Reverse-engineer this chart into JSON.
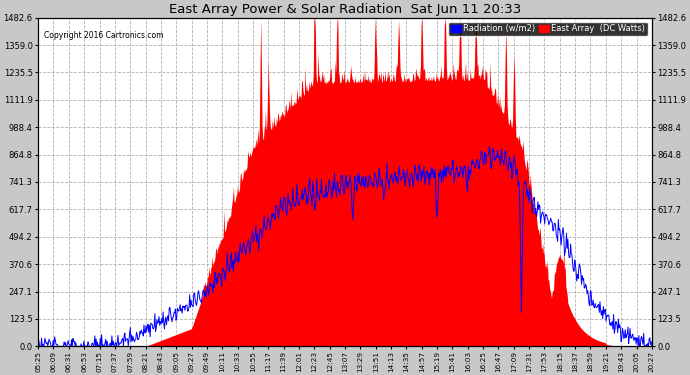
{
  "title": "East Array Power & Solar Radiation  Sat Jun 11 20:33",
  "copyright": "Copyright 2016 Cartronics.com",
  "legend_labels": [
    "Radiation (w/m2)",
    "East Array  (DC Watts)"
  ],
  "legend_colors": [
    "#0000ff",
    "#ff0000"
  ],
  "background_color": "#c8c8c8",
  "plot_bg_color": "#ffffff",
  "red_fill_color": "#ff0000",
  "blue_line_color": "#0000ff",
  "y_ticks": [
    0.0,
    123.5,
    247.1,
    370.6,
    494.2,
    617.7,
    741.3,
    864.8,
    988.4,
    1111.9,
    1235.5,
    1359.0,
    1482.6
  ],
  "x_tick_labels": [
    "05:25",
    "06:09",
    "06:31",
    "06:53",
    "07:15",
    "07:37",
    "07:59",
    "08:21",
    "08:43",
    "09:05",
    "09:27",
    "09:49",
    "10:11",
    "10:33",
    "10:55",
    "11:17",
    "11:39",
    "12:01",
    "12:23",
    "12:45",
    "13:07",
    "13:29",
    "13:51",
    "14:13",
    "14:35",
    "14:57",
    "15:19",
    "15:41",
    "16:03",
    "16:25",
    "16:47",
    "17:09",
    "17:31",
    "17:53",
    "18:15",
    "18:37",
    "18:59",
    "19:21",
    "19:43",
    "20:05",
    "20:27"
  ],
  "ymax": 1482.6,
  "figsize": [
    6.9,
    3.75
  ],
  "dpi": 100
}
